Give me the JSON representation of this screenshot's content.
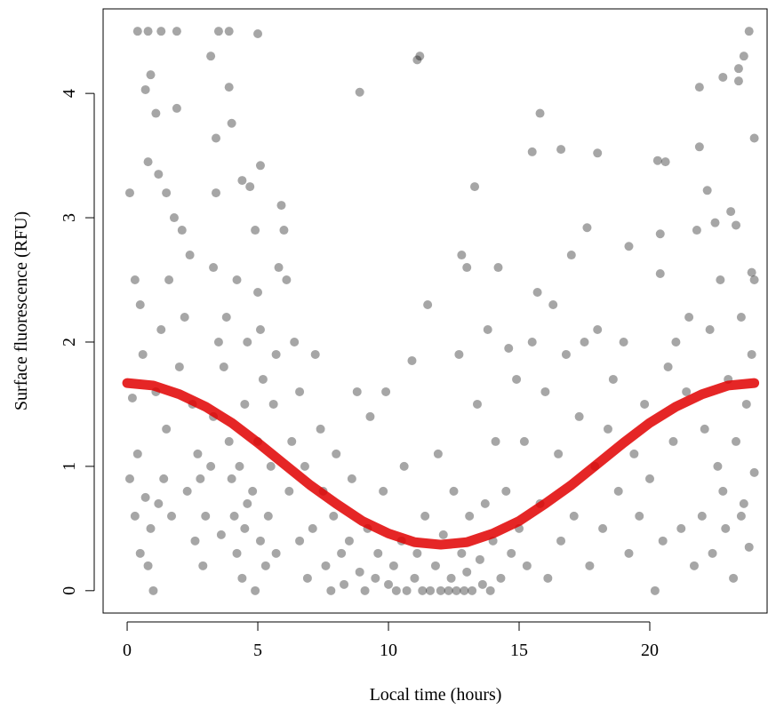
{
  "chart_data": {
    "type": "scatter",
    "xlabel": "Local time (hours)",
    "ylabel": "Surface fluorescence (RFU)",
    "xlim": [
      -0.92,
      24.49
    ],
    "ylim": [
      -0.18,
      4.68
    ],
    "xticks": [
      0,
      5,
      10,
      15,
      20
    ],
    "yticks": [
      0,
      1,
      2,
      3,
      4
    ],
    "series": [
      {
        "type": "scatter",
        "color": "#000000",
        "x": [
          0.4,
          0.8,
          1.3,
          1.9,
          3.5,
          3.9,
          5,
          3.2,
          0.7,
          0.9,
          3.9,
          1.9,
          1.1,
          3.4,
          4,
          8.9,
          11.2,
          11.1,
          15.8,
          15.5,
          16.6,
          18,
          20.3,
          20.6,
          21.9,
          22.8,
          23.4,
          23.6,
          23.8,
          24,
          23.4,
          13.3,
          12.8,
          13,
          17.6,
          19.2,
          20.4,
          22.2,
          22.5,
          23.3,
          23.9,
          0.1,
          0.3,
          0.5,
          0.6,
          0.2,
          0.4,
          0.1,
          0.3,
          0.5,
          0.8,
          1.0,
          0.9,
          1.2,
          1.4,
          1.5,
          1.1,
          1.3,
          1.6,
          1.8,
          1.5,
          0.8,
          1.2,
          2.1,
          2.4,
          2.2,
          2.0,
          2.5,
          2.7,
          2.3,
          2.6,
          2.9,
          3.0,
          3.2,
          3.3,
          3.5,
          3.3,
          3.4,
          3.8,
          3.7,
          3.9,
          4.0,
          4.1,
          4.2,
          4.4,
          4.5,
          4.3,
          4.5,
          4.6,
          4.2,
          4.4,
          4.7,
          4.9,
          5.0,
          5.1,
          5.2,
          5.0,
          4.8,
          5.1,
          4.9,
          5.3,
          5.4,
          5.5,
          5.6,
          5.7,
          5.8,
          6.0,
          6.1,
          5.9,
          5.1,
          0.7,
          1.7,
          2.8,
          3.6,
          4.6,
          5.7,
          6.2,
          6.3,
          6.4,
          6.6,
          6.8,
          6.6,
          6.9,
          7.1,
          7.2,
          7.4,
          7.5,
          7.6,
          7.8,
          7.9,
          8.0,
          8.2,
          8.3,
          8.5,
          8.6,
          8.8,
          8.9,
          9.1,
          9.2,
          9.3,
          9.5,
          9.6,
          9.8,
          9.9,
          10.0,
          10.2,
          10.3,
          10.5,
          10.6,
          10.7,
          10.9,
          11.0,
          11.1,
          11.3,
          11.4,
          11.5,
          11.6,
          11.8,
          11.9,
          12.0,
          12.1,
          12.3,
          12.4,
          12.5,
          12.6,
          12.7,
          12.8,
          12.9,
          13.0,
          13.1,
          13.2,
          13.4,
          13.5,
          13.6,
          13.7,
          13.8,
          13.9,
          14.0,
          14.1,
          14.2,
          14.3,
          14.5,
          14.6,
          14.7,
          14.9,
          15.0,
          15.2,
          15.3,
          15.5,
          15.7,
          15.8,
          16.0,
          16.1,
          16.3,
          16.5,
          16.6,
          16.8,
          17.0,
          17.1,
          17.3,
          17.5,
          17.7,
          17.9,
          18.0,
          18.2,
          18.4,
          18.6,
          18.8,
          19.0,
          19.2,
          19.4,
          19.6,
          19.8,
          20.0,
          20.2,
          20.4,
          20.5,
          20.7,
          20.9,
          21.0,
          21.2,
          21.4,
          21.5,
          21.7,
          21.8,
          22.0,
          22.1,
          22.3,
          22.4,
          22.6,
          22.7,
          22.9,
          23.0,
          23.1,
          23.2,
          23.3,
          23.5,
          23.6,
          23.7,
          23.8,
          23.9,
          24.0,
          24.0,
          23.5,
          22.8,
          21.9
        ],
        "values": [
          4.5,
          4.5,
          4.5,
          4.5,
          4.5,
          4.5,
          4.48,
          4.3,
          4.03,
          4.15,
          4.05,
          3.88,
          3.84,
          3.64,
          3.76,
          4.01,
          4.3,
          4.27,
          3.84,
          3.53,
          3.55,
          3.52,
          3.46,
          3.45,
          4.05,
          4.13,
          4.2,
          4.3,
          4.5,
          3.64,
          4.1,
          3.25,
          2.7,
          2.6,
          2.92,
          2.77,
          2.87,
          3.22,
          2.96,
          2.94,
          2.56,
          3.2,
          2.5,
          2.3,
          1.9,
          1.55,
          1.1,
          0.9,
          0.6,
          0.3,
          0.2,
          0.0,
          0.5,
          0.7,
          0.9,
          1.3,
          1.6,
          2.1,
          2.5,
          3.0,
          3.2,
          3.45,
          3.35,
          2.9,
          2.7,
          2.2,
          1.8,
          1.5,
          1.1,
          0.8,
          0.4,
          0.2,
          0.6,
          1.0,
          1.4,
          2.0,
          2.6,
          3.2,
          2.2,
          1.8,
          1.2,
          0.9,
          0.6,
          0.3,
          0.1,
          0.5,
          1.0,
          1.5,
          2.0,
          2.5,
          3.3,
          3.25,
          2.9,
          2.4,
          2.1,
          1.7,
          1.2,
          0.8,
          0.4,
          0.0,
          0.2,
          0.6,
          1.0,
          1.5,
          1.9,
          2.6,
          2.9,
          2.5,
          3.1,
          3.42,
          0.75,
          0.6,
          0.9,
          0.45,
          0.7,
          0.3,
          0.8,
          1.2,
          2.0,
          1.6,
          1.0,
          0.4,
          0.1,
          0.5,
          1.9,
          1.3,
          0.8,
          0.2,
          0.0,
          0.6,
          1.1,
          0.3,
          0.05,
          0.4,
          0.9,
          1.6,
          0.15,
          0.0,
          0.5,
          1.4,
          0.1,
          0.3,
          0.8,
          1.6,
          0.05,
          0.2,
          0.0,
          0.4,
          1.0,
          0.0,
          1.85,
          0.1,
          0.3,
          0.0,
          0.6,
          2.3,
          0.0,
          0.2,
          1.1,
          0.0,
          0.45,
          0.0,
          0.1,
          0.8,
          0.0,
          1.9,
          0.3,
          0.0,
          0.15,
          0.6,
          0.0,
          1.5,
          0.25,
          0.05,
          0.7,
          2.1,
          0.0,
          0.4,
          1.2,
          2.6,
          0.1,
          0.8,
          1.95,
          0.3,
          1.7,
          0.5,
          1.2,
          0.2,
          2.0,
          2.4,
          0.7,
          1.6,
          0.1,
          2.3,
          1.1,
          0.4,
          1.9,
          2.7,
          0.6,
          1.4,
          2.0,
          0.2,
          1.0,
          2.1,
          0.5,
          1.3,
          1.7,
          0.8,
          2.0,
          0.3,
          1.1,
          0.6,
          1.5,
          0.9,
          0.0,
          2.55,
          0.4,
          1.8,
          1.2,
          2.0,
          0.5,
          1.6,
          2.2,
          0.2,
          2.9,
          0.6,
          1.3,
          2.1,
          0.3,
          1.0,
          2.5,
          0.5,
          1.7,
          3.05,
          0.1,
          1.2,
          2.2,
          0.7,
          1.5,
          0.35,
          1.9,
          0.95,
          2.5,
          0.6,
          0.8,
          3.57
        ]
      },
      {
        "type": "line",
        "color": "#e00000",
        "x": [
          0,
          1,
          2,
          3,
          4,
          5,
          6,
          7,
          8,
          9,
          10,
          11,
          12,
          13,
          14,
          15,
          16,
          17,
          18,
          19,
          20,
          21,
          22,
          23,
          24
        ],
        "values": [
          1.67,
          1.65,
          1.58,
          1.48,
          1.35,
          1.19,
          1.02,
          0.85,
          0.7,
          0.56,
          0.46,
          0.39,
          0.37,
          0.39,
          0.46,
          0.56,
          0.7,
          0.85,
          1.02,
          1.19,
          1.35,
          1.48,
          1.58,
          1.65,
          1.67
        ]
      }
    ]
  }
}
